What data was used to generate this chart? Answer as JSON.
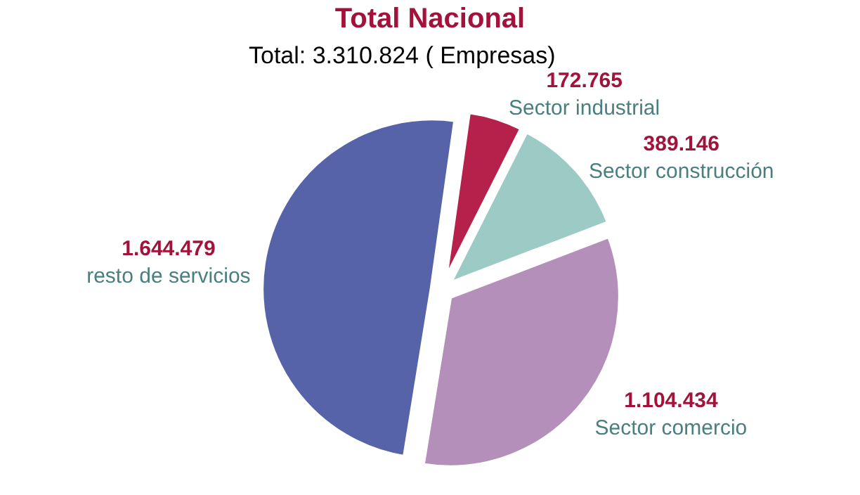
{
  "chart_data": {
    "type": "pie",
    "title": "Total Nacional",
    "subtitle": "Total: 3.310.824 ( Empresas)",
    "categories": [
      "Sector industrial",
      "Sector construcción",
      "Sector comercio",
      "resto de servicios"
    ],
    "values": [
      172765,
      389146,
      1104434,
      1644479
    ],
    "value_labels": [
      "172.765",
      "389.146",
      "1.104.434",
      "1.644.479"
    ],
    "colors": [
      "#b5214a",
      "#9ccbc6",
      "#b48fba",
      "#5763a9"
    ],
    "legend": false
  }
}
